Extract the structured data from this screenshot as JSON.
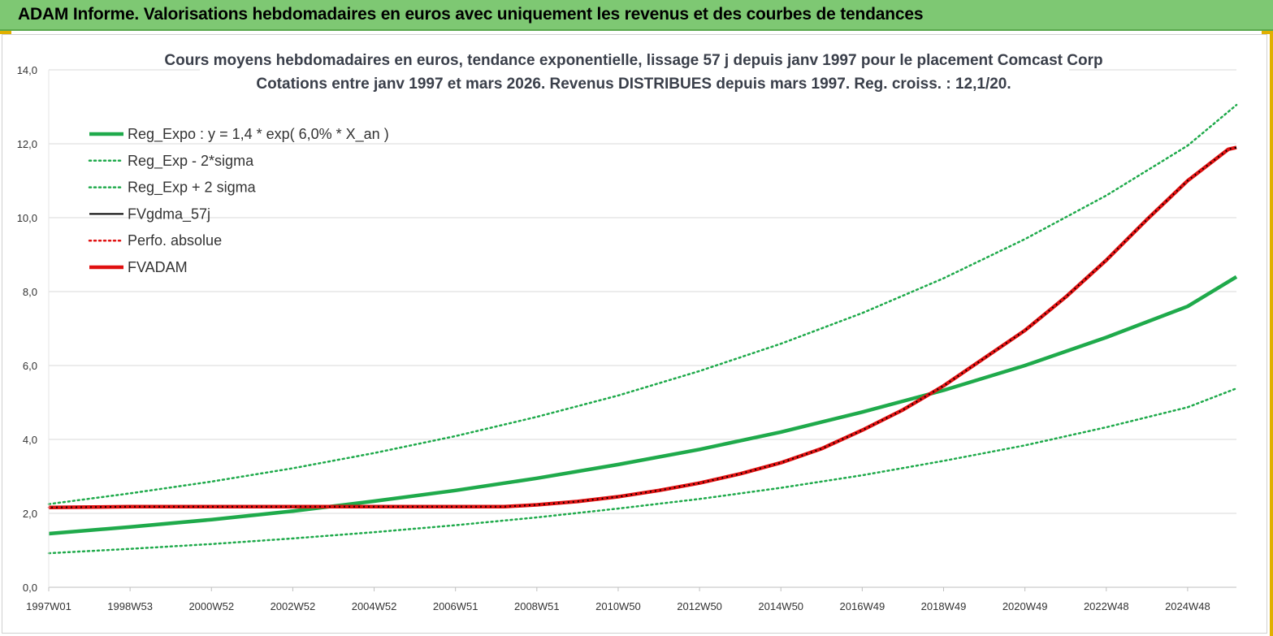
{
  "header": {
    "title": "ADAM Informe. Valorisations hebdomadaires en euros avec uniquement les revenus et des courbes de tendances"
  },
  "colors": {
    "header_bg": "#7ec873",
    "accent": "#e0b000",
    "green": "#1faa4b",
    "black": "#000000",
    "red": "#e01010",
    "grid": "#d9d9d9"
  },
  "chart_data": {
    "type": "line",
    "title": "Cours moyens hebdomadaires en euros, tendance exponentielle, lissage 57 j depuis janv 1997 pour le placement Comcast Corp",
    "subtitle": "Cotations entre janv 1997 et mars 2026. Revenus DISTRIBUES depuis mars 1997. Reg. croiss. : 12,1/20.",
    "xlim": [
      1997.0,
      2026.2
    ],
    "ylim": [
      0,
      14
    ],
    "grid": true,
    "legend_position": "top-left",
    "x_ticks": [
      {
        "label": "1997W01",
        "x": 1997.0
      },
      {
        "label": "1998W53",
        "x": 1999.0
      },
      {
        "label": "2000W52",
        "x": 2001.0
      },
      {
        "label": "2002W52",
        "x": 2003.0
      },
      {
        "label": "2004W52",
        "x": 2005.0
      },
      {
        "label": "2006W51",
        "x": 2007.0
      },
      {
        "label": "2008W51",
        "x": 2009.0
      },
      {
        "label": "2010W50",
        "x": 2011.0
      },
      {
        "label": "2012W50",
        "x": 2013.0
      },
      {
        "label": "2014W50",
        "x": 2015.0
      },
      {
        "label": "2016W49",
        "x": 2017.0
      },
      {
        "label": "2018W49",
        "x": 2019.0
      },
      {
        "label": "2020W49",
        "x": 2021.0
      },
      {
        "label": "2022W48",
        "x": 2023.0
      },
      {
        "label": "2024W48",
        "x": 2025.0
      }
    ],
    "y_ticks": [
      "0,0",
      "2,0",
      "4,0",
      "6,0",
      "8,0",
      "10,0",
      "12,0",
      "14,0"
    ],
    "series": [
      {
        "name": "Reg_Expo : y = 1,4 * exp( 6,0% *  X_an )",
        "color": "#1faa4b",
        "style": "solid-thick",
        "x": [
          1997.0,
          1999.0,
          2001.0,
          2003.0,
          2005.0,
          2007.0,
          2009.0,
          2011.0,
          2013.0,
          2015.0,
          2017.0,
          2019.0,
          2021.0,
          2023.0,
          2025.0,
          2026.2
        ],
        "y": [
          1.45,
          1.63,
          1.83,
          2.06,
          2.33,
          2.62,
          2.95,
          3.32,
          3.73,
          4.2,
          4.74,
          5.33,
          6.0,
          6.76,
          7.6,
          8.4
        ]
      },
      {
        "name": "Reg_Exp - 2*sigma",
        "color": "#1faa4b",
        "style": "dotted",
        "x": [
          1997.0,
          1999.0,
          2001.0,
          2003.0,
          2005.0,
          2007.0,
          2009.0,
          2011.0,
          2013.0,
          2015.0,
          2017.0,
          2019.0,
          2021.0,
          2023.0,
          2025.0,
          2026.2
        ],
        "y": [
          0.92,
          1.04,
          1.17,
          1.32,
          1.49,
          1.68,
          1.89,
          2.13,
          2.39,
          2.69,
          3.03,
          3.42,
          3.84,
          4.33,
          4.87,
          5.38
        ]
      },
      {
        "name": "Reg_Exp + 2 sigma",
        "color": "#1faa4b",
        "style": "dotted",
        "x": [
          1997.0,
          1999.0,
          2001.0,
          2003.0,
          2005.0,
          2007.0,
          2009.0,
          2011.0,
          2013.0,
          2015.0,
          2017.0,
          2019.0,
          2021.0,
          2023.0,
          2025.0,
          2026.2
        ],
        "y": [
          2.25,
          2.54,
          2.86,
          3.22,
          3.63,
          4.09,
          4.61,
          5.19,
          5.85,
          6.59,
          7.42,
          8.36,
          9.42,
          10.6,
          11.95,
          13.05
        ]
      },
      {
        "name": "FVgdma_57j",
        "color": "#000000",
        "style": "solid",
        "x": [
          1997.0,
          1999.0,
          2001.0,
          2003.0,
          2005.0,
          2007.0,
          2008.2,
          2009.0,
          2010.0,
          2011.0,
          2012.0,
          2013.0,
          2014.0,
          2015.0,
          2016.0,
          2017.0,
          2018.0,
          2019.0,
          2020.0,
          2021.0,
          2022.0,
          2023.0,
          2024.0,
          2025.0,
          2026.0,
          2026.2
        ],
        "y": [
          2.16,
          2.18,
          2.18,
          2.18,
          2.18,
          2.18,
          2.18,
          2.23,
          2.32,
          2.45,
          2.62,
          2.82,
          3.07,
          3.37,
          3.75,
          4.25,
          4.8,
          5.45,
          6.2,
          6.95,
          7.85,
          8.85,
          9.95,
          11.0,
          11.85,
          11.9
        ]
      },
      {
        "name": "Perfo. absolue",
        "color": "#e01010",
        "style": "dotted",
        "x": [
          1997.0,
          1999.0,
          2001.0,
          2003.0,
          2005.0,
          2007.0,
          2008.2,
          2009.0,
          2010.0,
          2011.0,
          2012.0,
          2013.0,
          2014.0,
          2015.0,
          2016.0,
          2017.0,
          2018.0,
          2019.0,
          2020.0,
          2021.0,
          2022.0,
          2023.0,
          2024.0,
          2025.0,
          2026.0,
          2026.2
        ],
        "y": [
          2.16,
          2.18,
          2.18,
          2.18,
          2.18,
          2.18,
          2.18,
          2.23,
          2.32,
          2.45,
          2.62,
          2.82,
          3.07,
          3.37,
          3.75,
          4.25,
          4.8,
          5.45,
          6.2,
          6.95,
          7.85,
          8.85,
          9.95,
          11.0,
          11.85,
          11.9
        ]
      },
      {
        "name": "FVADAM",
        "color": "#e01010",
        "style": "solid-thick",
        "x": [
          1997.0,
          1999.0,
          2001.0,
          2003.0,
          2005.0,
          2007.0,
          2008.2,
          2009.0,
          2010.0,
          2011.0,
          2012.0,
          2013.0,
          2014.0,
          2015.0,
          2016.0,
          2017.0,
          2018.0,
          2019.0,
          2020.0,
          2021.0,
          2022.0,
          2023.0,
          2024.0,
          2025.0,
          2026.0,
          2026.2
        ],
        "y": [
          2.16,
          2.18,
          2.18,
          2.18,
          2.18,
          2.18,
          2.18,
          2.23,
          2.32,
          2.45,
          2.62,
          2.82,
          3.07,
          3.37,
          3.75,
          4.25,
          4.8,
          5.45,
          6.2,
          6.95,
          7.85,
          8.85,
          9.95,
          11.0,
          11.85,
          11.9
        ]
      }
    ]
  }
}
